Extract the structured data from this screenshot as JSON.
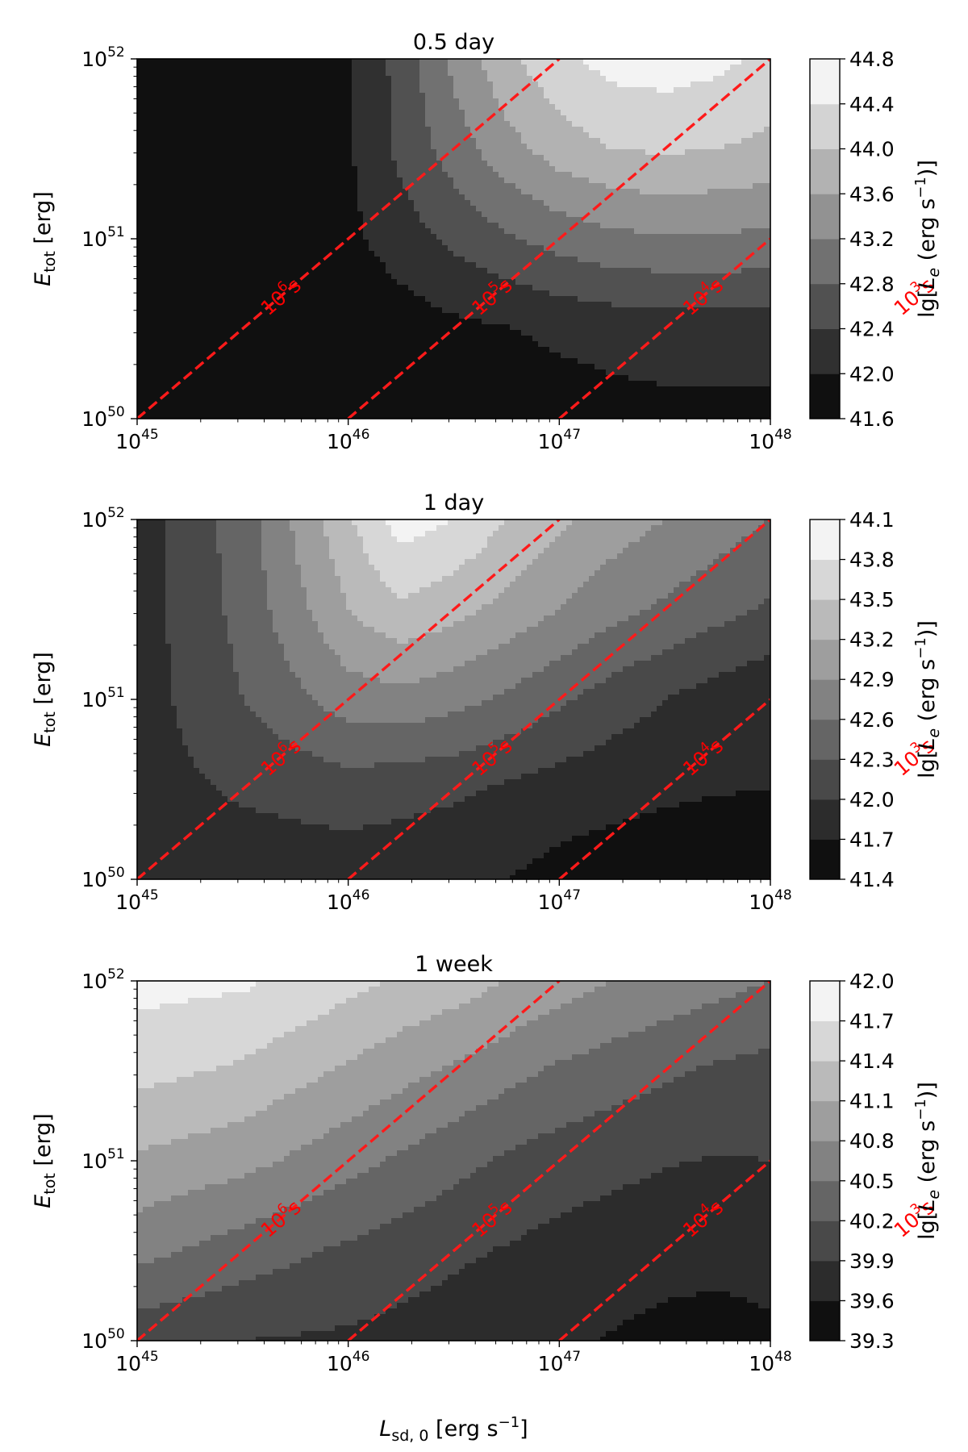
{
  "figure": {
    "xlabel": "L_sd,0 [erg s^-1]",
    "xlabel_main": "L",
    "xlabel_sub": "sd, 0",
    "xlabel_rest": " [erg s",
    "xlabel_sup": "−1",
    "xlabel_end": "]",
    "ylabel_main": "E",
    "ylabel_sub": "tot",
    "ylabel_rest": " [erg]",
    "cbar_label_pre": "lg[",
    "cbar_label_var": "L",
    "cbar_label_sub": "e",
    "cbar_label_mid": " (erg s",
    "cbar_label_sup": "−1",
    "cbar_label_end": ")]",
    "line_color": "#ff1a1a"
  },
  "chart_data": [
    {
      "type": "heatmap",
      "title": "0.5 day",
      "x_scale": "log",
      "y_scale": "log",
      "xlim_exp": [
        45,
        48
      ],
      "ylim_exp": [
        50,
        52
      ],
      "x_ticks": [
        "45",
        "46",
        "47",
        "48"
      ],
      "y_ticks": [
        "50",
        "51",
        "52"
      ],
      "colorbar": {
        "levels": [
          41.6,
          42.0,
          42.4,
          42.8,
          43.2,
          43.6,
          44.0,
          44.4,
          44.8
        ],
        "tick_labels": [
          "41.6",
          "42.0",
          "42.4",
          "42.8",
          "43.2",
          "43.6",
          "44.0",
          "44.4",
          "44.8"
        ]
      },
      "lx_grid": [
        45.0,
        45.5,
        46.0,
        46.25,
        46.5,
        46.75,
        47.0,
        47.25,
        47.5,
        47.75,
        48.0
      ],
      "ly_grid": [
        50.0,
        50.5,
        51.0,
        51.5,
        52.0
      ],
      "lg_Le": [
        [
          41.6,
          41.6,
          41.62,
          41.65,
          41.7,
          41.75,
          41.8,
          41.85,
          41.88,
          41.9,
          41.9
        ],
        [
          41.6,
          41.6,
          41.7,
          41.8,
          41.9,
          41.98,
          42.08,
          42.15,
          42.2,
          42.2,
          42.2
        ],
        [
          41.6,
          41.6,
          41.9,
          42.2,
          42.5,
          42.75,
          42.95,
          43.1,
          43.15,
          43.15,
          43.1
        ],
        [
          41.6,
          41.6,
          41.95,
          42.5,
          43.0,
          43.45,
          43.8,
          44.0,
          44.05,
          44.0,
          43.9
        ],
        [
          41.6,
          41.6,
          41.95,
          42.55,
          43.3,
          43.9,
          44.3,
          44.55,
          44.6,
          44.5,
          44.3
        ]
      ],
      "timescale_lines": [
        {
          "label": "10",
          "exp": "6",
          "unit": "s",
          "lx_at_bottom": 45.0
        },
        {
          "label": "10",
          "exp": "5",
          "unit": "s",
          "lx_at_bottom": 46.0
        },
        {
          "label": "10",
          "exp": "4",
          "unit": "s",
          "lx_at_bottom": 47.0
        },
        {
          "label": "10",
          "exp": "3",
          "unit": "s",
          "lx_at_bottom": 48.0
        }
      ]
    },
    {
      "type": "heatmap",
      "title": "1 day",
      "x_scale": "log",
      "y_scale": "log",
      "xlim_exp": [
        45,
        48
      ],
      "ylim_exp": [
        50,
        52
      ],
      "x_ticks": [
        "45",
        "46",
        "47",
        "48"
      ],
      "y_ticks": [
        "50",
        "51",
        "52"
      ],
      "colorbar": {
        "levels": [
          41.4,
          41.7,
          42.0,
          42.3,
          42.6,
          42.9,
          43.2,
          43.5,
          43.8,
          44.1
        ],
        "tick_labels": [
          "41.4",
          "41.7",
          "42.0",
          "42.3",
          "42.6",
          "42.9",
          "43.2",
          "43.5",
          "43.8",
          "44.1"
        ]
      },
      "lx_grid": [
        45.0,
        45.5,
        46.0,
        46.25,
        46.5,
        46.75,
        47.0,
        47.25,
        47.5,
        47.75,
        48.0
      ],
      "ly_grid": [
        50.0,
        50.5,
        51.0,
        51.5,
        52.0
      ],
      "lg_Le": [
        [
          41.75,
          41.8,
          41.82,
          41.8,
          41.75,
          41.7,
          41.6,
          41.55,
          41.5,
          41.45,
          41.4
        ],
        [
          41.85,
          42.05,
          42.15,
          42.1,
          42.05,
          41.95,
          41.85,
          41.8,
          41.75,
          41.72,
          41.7
        ],
        [
          41.85,
          42.3,
          42.75,
          42.8,
          42.7,
          42.55,
          42.35,
          42.15,
          42.0,
          41.85,
          41.75
        ],
        [
          41.85,
          42.4,
          43.2,
          43.45,
          43.3,
          43.1,
          42.9,
          42.7,
          42.55,
          42.4,
          42.25
        ],
        [
          41.85,
          42.45,
          43.45,
          43.95,
          43.8,
          43.5,
          43.25,
          43.05,
          42.9,
          42.75,
          42.6
        ]
      ],
      "timescale_lines": [
        {
          "label": "10",
          "exp": "6",
          "unit": "s",
          "lx_at_bottom": 45.0
        },
        {
          "label": "10",
          "exp": "5",
          "unit": "s",
          "lx_at_bottom": 46.0
        },
        {
          "label": "10",
          "exp": "4",
          "unit": "s",
          "lx_at_bottom": 47.0
        },
        {
          "label": "10",
          "exp": "3",
          "unit": "s",
          "lx_at_bottom": 48.0
        }
      ]
    },
    {
      "type": "heatmap",
      "title": "1 week",
      "x_scale": "log",
      "y_scale": "log",
      "xlim_exp": [
        45,
        48
      ],
      "ylim_exp": [
        50,
        52
      ],
      "x_ticks": [
        "45",
        "46",
        "47",
        "48"
      ],
      "y_ticks": [
        "50",
        "51",
        "52"
      ],
      "colorbar": {
        "levels": [
          39.3,
          39.6,
          39.9,
          40.2,
          40.5,
          40.8,
          41.1,
          41.4,
          41.7,
          42.0
        ],
        "tick_labels": [
          "39.3",
          "39.6",
          "39.9",
          "40.2",
          "40.5",
          "40.8",
          "41.1",
          "41.4",
          "41.7",
          "42.0"
        ]
      },
      "lx_grid": [
        45.0,
        45.5,
        46.0,
        46.25,
        46.5,
        46.75,
        47.0,
        47.25,
        47.5,
        47.75,
        48.0
      ],
      "ly_grid": [
        50.0,
        50.5,
        51.0,
        51.5,
        52.0
      ],
      "lg_Le": [
        [
          40.0,
          39.9,
          39.85,
          39.8,
          39.75,
          39.7,
          39.65,
          39.58,
          39.52,
          39.5,
          39.55
        ],
        [
          40.6,
          40.35,
          40.15,
          40.05,
          39.95,
          39.88,
          39.8,
          39.75,
          39.7,
          39.68,
          39.7
        ],
        [
          41.05,
          40.9,
          40.6,
          40.45,
          40.3,
          40.15,
          40.05,
          39.98,
          39.92,
          39.88,
          39.9
        ],
        [
          41.5,
          41.35,
          41.05,
          40.9,
          40.75,
          40.6,
          40.45,
          40.35,
          40.25,
          40.15,
          40.1
        ],
        [
          41.8,
          41.75,
          41.5,
          41.35,
          41.25,
          41.1,
          40.95,
          40.8,
          40.7,
          40.6,
          40.5
        ]
      ],
      "timescale_lines": [
        {
          "label": "10",
          "exp": "6",
          "unit": "s",
          "lx_at_bottom": 45.0
        },
        {
          "label": "10",
          "exp": "5",
          "unit": "s",
          "lx_at_bottom": 46.0
        },
        {
          "label": "10",
          "exp": "4",
          "unit": "s",
          "lx_at_bottom": 47.0
        },
        {
          "label": "10",
          "exp": "3",
          "unit": "s",
          "lx_at_bottom": 48.0
        }
      ]
    }
  ]
}
